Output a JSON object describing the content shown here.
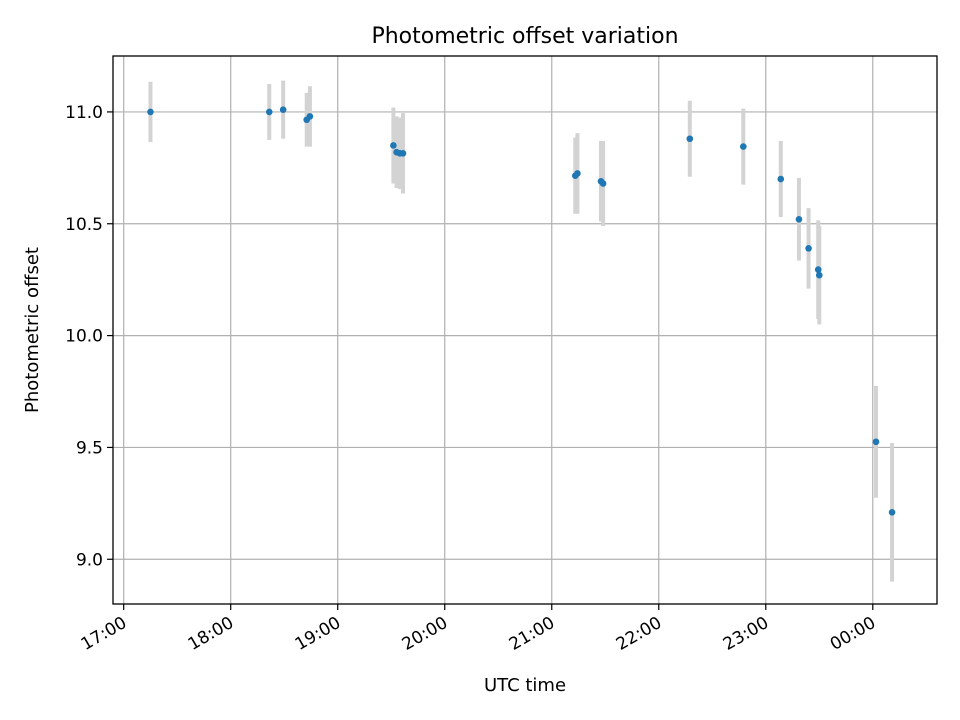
{
  "chart_data": {
    "type": "scatter",
    "title": "Photometric offset variation",
    "xlabel": "UTC time",
    "ylabel": "Photometric offset",
    "x_unit": "UTC time (hours, continuous past midnight)",
    "xlim": [
      16.9,
      24.6
    ],
    "ylim": [
      8.8,
      11.25
    ],
    "xticks": [
      {
        "value": 17,
        "label": "17:00"
      },
      {
        "value": 18,
        "label": "18:00"
      },
      {
        "value": 19,
        "label": "19:00"
      },
      {
        "value": 20,
        "label": "20:00"
      },
      {
        "value": 21,
        "label": "21:00"
      },
      {
        "value": 22,
        "label": "22:00"
      },
      {
        "value": 23,
        "label": "23:00"
      },
      {
        "value": 24,
        "label": "00:00"
      }
    ],
    "yticks": [
      {
        "value": 9.0,
        "label": "9.0"
      },
      {
        "value": 9.5,
        "label": "9.5"
      },
      {
        "value": 10.0,
        "label": "10.0"
      },
      {
        "value": 10.5,
        "label": "10.5"
      },
      {
        "value": 11.0,
        "label": "11.0"
      }
    ],
    "grid": true,
    "series": [
      {
        "color": "#1f77b4",
        "error_color": "#d3d3d3",
        "points": [
          {
            "x": 17.25,
            "y": 11.0,
            "err": 0.135
          },
          {
            "x": 18.36,
            "y": 11.0,
            "err": 0.125
          },
          {
            "x": 18.49,
            "y": 11.01,
            "err": 0.13
          },
          {
            "x": 18.71,
            "y": 10.965,
            "err": 0.12
          },
          {
            "x": 18.74,
            "y": 10.98,
            "err": 0.135
          },
          {
            "x": 19.52,
            "y": 10.85,
            "err": 0.17
          },
          {
            "x": 19.55,
            "y": 10.82,
            "err": 0.16
          },
          {
            "x": 19.58,
            "y": 10.815,
            "err": 0.16
          },
          {
            "x": 19.61,
            "y": 10.815,
            "err": 0.18
          },
          {
            "x": 21.22,
            "y": 10.715,
            "err": 0.17
          },
          {
            "x": 21.24,
            "y": 10.725,
            "err": 0.18
          },
          {
            "x": 21.46,
            "y": 10.69,
            "err": 0.18
          },
          {
            "x": 21.48,
            "y": 10.68,
            "err": 0.19
          },
          {
            "x": 22.29,
            "y": 10.88,
            "err": 0.17
          },
          {
            "x": 22.79,
            "y": 10.845,
            "err": 0.17
          },
          {
            "x": 23.14,
            "y": 10.7,
            "err": 0.17
          },
          {
            "x": 23.31,
            "y": 10.52,
            "err": 0.185
          },
          {
            "x": 23.4,
            "y": 10.39,
            "err": 0.18
          },
          {
            "x": 23.49,
            "y": 10.295,
            "err": 0.22
          },
          {
            "x": 23.5,
            "y": 10.27,
            "err": 0.22
          },
          {
            "x": 24.03,
            "y": 9.525,
            "err": 0.25
          },
          {
            "x": 24.18,
            "y": 9.21,
            "err": 0.31
          }
        ]
      }
    ]
  }
}
